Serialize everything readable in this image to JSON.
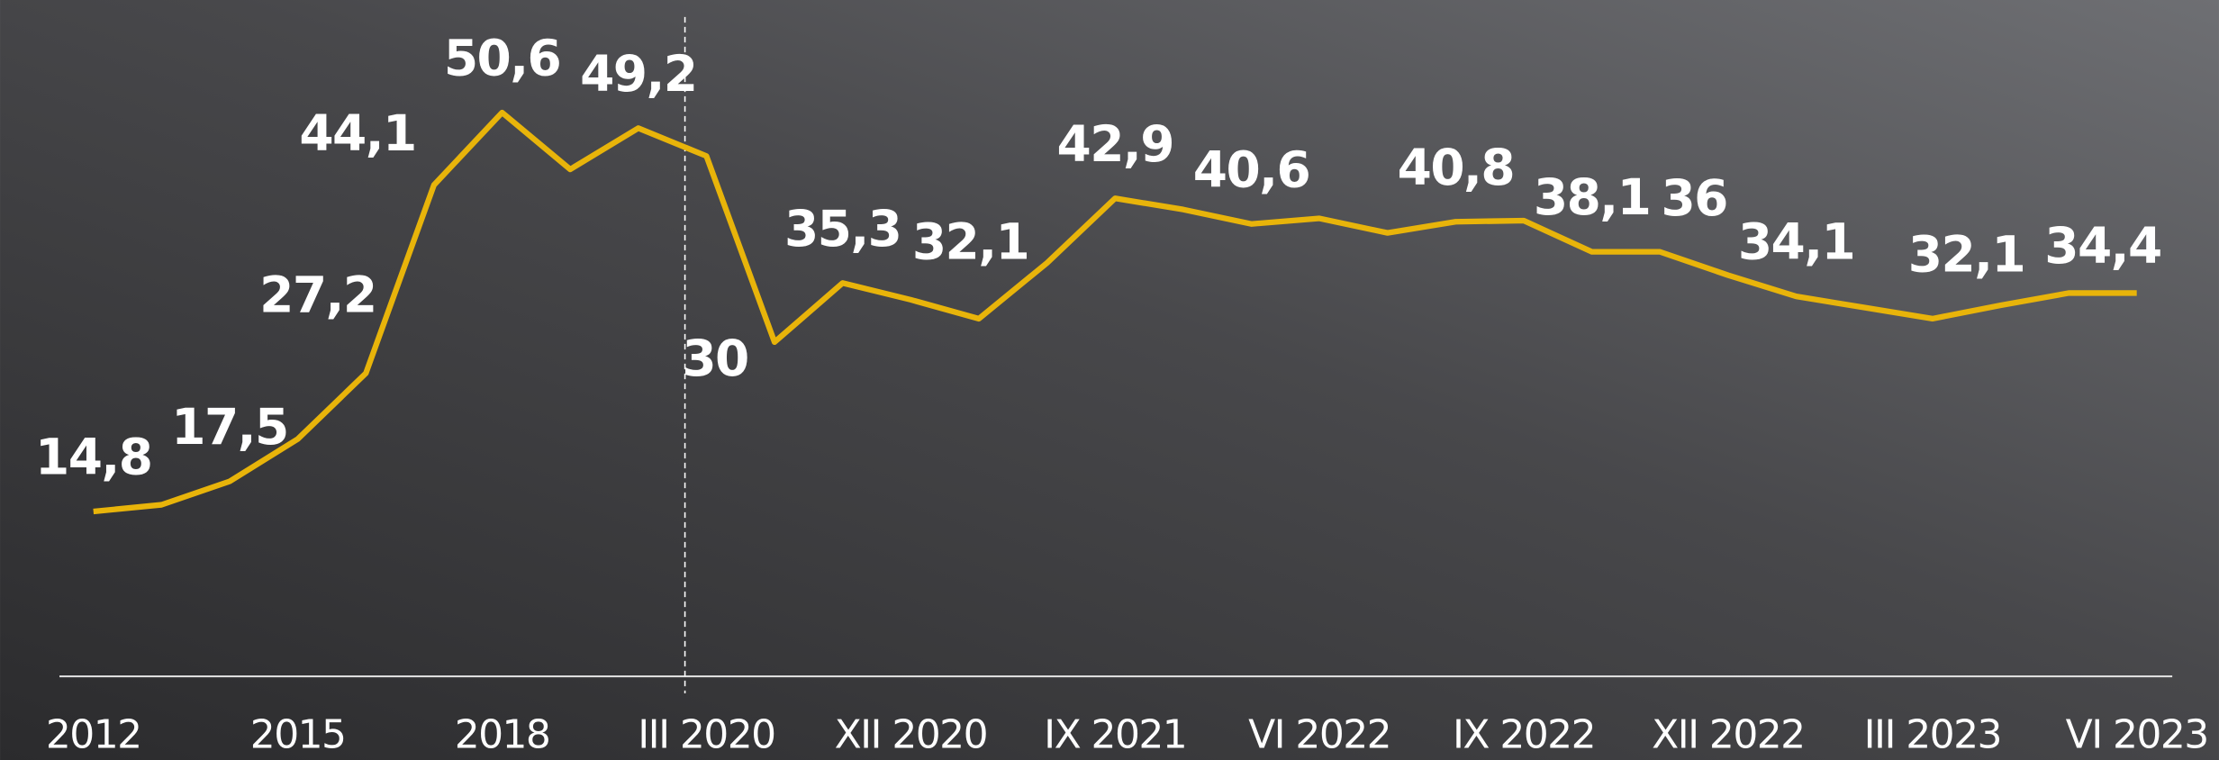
{
  "chart_data": {
    "type": "line",
    "categories": [
      "2012",
      null,
      null,
      "2015",
      null,
      null,
      "2018",
      null,
      null,
      "III 2020",
      null,
      null,
      "XII 2020",
      null,
      null,
      "IX  2021",
      null,
      null,
      "VI 2022",
      null,
      null,
      "IX 2022",
      null,
      null,
      "XII 2022",
      null,
      null,
      "III 2023",
      null,
      null,
      "VI 2023"
    ],
    "series": [
      {
        "color": "#e8b40a",
        "values": [
          14.8,
          15.4,
          17.5,
          21.3,
          27.2,
          44.1,
          50.6,
          45.5,
          49.2,
          46.7,
          30,
          35.3,
          33.8,
          32.1,
          37.1,
          42.9,
          41.9,
          40.6,
          41.1,
          39.8,
          40.8,
          40.9,
          38.1,
          38.1,
          36,
          34.1,
          33.1,
          32.1,
          33.3,
          34.4,
          34.4
        ],
        "value_labels": [
          "14,8",
          null,
          "17,5",
          null,
          "27,2",
          "44,1",
          "50,6",
          null,
          "49,2",
          null,
          "30",
          "35,3",
          null,
          "32,1",
          null,
          "42,9",
          null,
          "40,6",
          null,
          null,
          "40,8",
          null,
          "38,1",
          null,
          "36",
          "34,1",
          null,
          "32,1",
          null,
          null,
          "34,4"
        ]
      }
    ],
    "ylim": [
      0,
      60.7
    ]
  }
}
